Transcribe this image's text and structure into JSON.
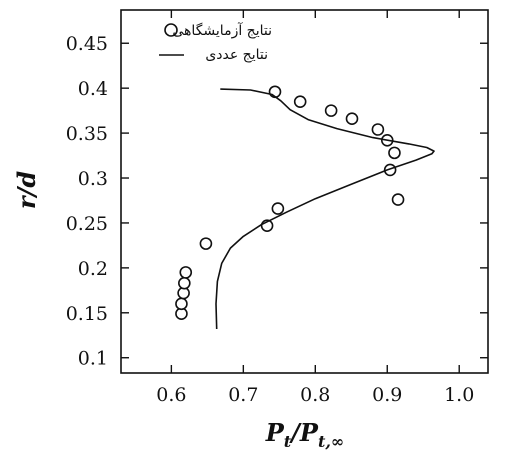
{
  "chart_data": {
    "type": "scatter",
    "xlabel": "P_t/P_t,∞",
    "ylabel": "r/d",
    "xlim": [
      0.53,
      1.04
    ],
    "ylim": [
      0.083,
      0.487
    ],
    "xticks": [
      0.6,
      0.7,
      0.8,
      0.9,
      1.0
    ],
    "xtick_labels": [
      "0.6",
      "0.7",
      "0.8",
      "0.9",
      "1.0"
    ],
    "yticks": [
      0.1,
      0.15,
      0.2,
      0.25,
      0.3,
      0.35,
      0.4,
      0.45
    ],
    "ytick_labels": [
      "0.1",
      "0.15",
      "0.2",
      "0.25",
      "0.3",
      "0.35",
      "0.4",
      "0.45"
    ],
    "grid": false,
    "legend_position": "top-right",
    "series": [
      {
        "name": "نتایج آزمایشگاهی",
        "kind": "markers",
        "marker": "open-circle",
        "points": [
          {
            "x": 0.614,
            "y": 0.149
          },
          {
            "x": 0.614,
            "y": 0.16
          },
          {
            "x": 0.617,
            "y": 0.172
          },
          {
            "x": 0.618,
            "y": 0.183
          },
          {
            "x": 0.62,
            "y": 0.195
          },
          {
            "x": 0.648,
            "y": 0.227
          },
          {
            "x": 0.733,
            "y": 0.247
          },
          {
            "x": 0.748,
            "y": 0.266
          },
          {
            "x": 0.744,
            "y": 0.396
          },
          {
            "x": 0.779,
            "y": 0.385
          },
          {
            "x": 0.822,
            "y": 0.375
          },
          {
            "x": 0.851,
            "y": 0.366
          },
          {
            "x": 0.887,
            "y": 0.354
          },
          {
            "x": 0.9,
            "y": 0.342
          },
          {
            "x": 0.91,
            "y": 0.328
          },
          {
            "x": 0.904,
            "y": 0.309
          },
          {
            "x": 0.915,
            "y": 0.276
          }
        ]
      },
      {
        "name": "نتایج عددی",
        "kind": "line",
        "points": [
          {
            "x": 0.663,
            "y": 0.132
          },
          {
            "x": 0.662,
            "y": 0.16
          },
          {
            "x": 0.664,
            "y": 0.185
          },
          {
            "x": 0.67,
            "y": 0.205
          },
          {
            "x": 0.682,
            "y": 0.222
          },
          {
            "x": 0.7,
            "y": 0.235
          },
          {
            "x": 0.725,
            "y": 0.248
          },
          {
            "x": 0.76,
            "y": 0.262
          },
          {
            "x": 0.8,
            "y": 0.277
          },
          {
            "x": 0.85,
            "y": 0.293
          },
          {
            "x": 0.9,
            "y": 0.309
          },
          {
            "x": 0.94,
            "y": 0.32
          },
          {
            "x": 0.962,
            "y": 0.327
          },
          {
            "x": 0.965,
            "y": 0.33
          },
          {
            "x": 0.955,
            "y": 0.334
          },
          {
            "x": 0.93,
            "y": 0.338
          },
          {
            "x": 0.88,
            "y": 0.345
          },
          {
            "x": 0.83,
            "y": 0.355
          },
          {
            "x": 0.79,
            "y": 0.365
          },
          {
            "x": 0.765,
            "y": 0.376
          },
          {
            "x": 0.752,
            "y": 0.386
          },
          {
            "x": 0.74,
            "y": 0.393
          },
          {
            "x": 0.71,
            "y": 0.398
          },
          {
            "x": 0.668,
            "y": 0.399
          }
        ]
      }
    ]
  }
}
